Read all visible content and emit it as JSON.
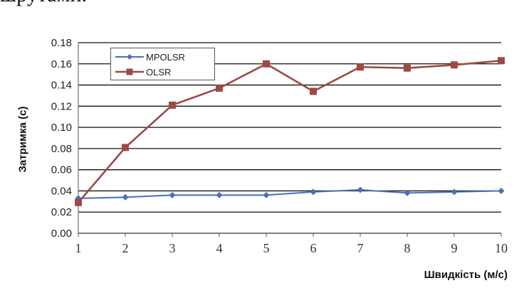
{
  "top_fragment": "шрутами.",
  "chart_data": {
    "type": "line",
    "title": "",
    "xlabel": "Швидкість (м/с)",
    "ylabel": "Затримка (с)",
    "x": [
      1,
      2,
      3,
      4,
      5,
      6,
      7,
      8,
      9,
      10
    ],
    "x_tick_labels": [
      "1",
      "2",
      "3",
      "4",
      "5",
      "6",
      "7",
      "8",
      "9",
      "10"
    ],
    "ylim": [
      0,
      0.18
    ],
    "y_ticks": [
      0.0,
      0.02,
      0.04,
      0.06,
      0.08,
      0.1,
      0.12,
      0.14,
      0.16,
      0.18
    ],
    "y_tick_labels": [
      "0.00",
      "0.02",
      "0.04",
      "0.06",
      "0.08",
      "0.10",
      "0.12",
      "0.14",
      "0.16",
      "0.18"
    ],
    "grid": "horizontal",
    "legend_position": "top-left",
    "series": [
      {
        "name": "MPOLSR",
        "color": "#4a6fb5",
        "marker": "diamond",
        "values": [
          0.033,
          0.034,
          0.036,
          0.036,
          0.036,
          0.039,
          0.041,
          0.038,
          0.039,
          0.04
        ]
      },
      {
        "name": "OLSR",
        "color": "#9c4a45",
        "marker": "square",
        "values": [
          0.029,
          0.081,
          0.121,
          0.137,
          0.16,
          0.134,
          0.157,
          0.156,
          0.159,
          0.163
        ]
      }
    ]
  }
}
